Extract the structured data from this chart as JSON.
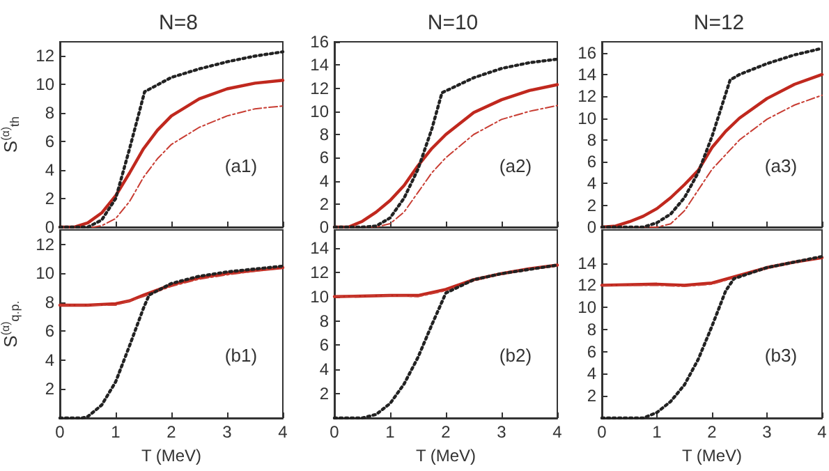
{
  "chart_data": [
    {
      "type": "line",
      "title": "N=8",
      "ylabel": "S$^{(α)}$$_{th}$",
      "annotations": [
        "(a1)"
      ],
      "xlim": [
        0,
        4
      ],
      "xticks": [
        0,
        1,
        2,
        3,
        4
      ],
      "ylim": [
        0,
        13
      ],
      "yticks": [
        0,
        2,
        4,
        6,
        8,
        10,
        12
      ],
      "tick_labels": "y",
      "grid": false,
      "marker": "none",
      "series": [
        {
          "color": "#222222",
          "line_style": "dotted",
          "x": [
            0,
            0.25,
            0.5,
            0.75,
            1,
            1.25,
            1.52,
            2,
            2.5,
            3,
            3.5,
            4
          ],
          "values": [
            0,
            0,
            0,
            0.5,
            2.0,
            5.5,
            9.5,
            10.5,
            11.1,
            11.6,
            12.0,
            12.3
          ]
        },
        {
          "color": "#c0281e",
          "line_style": "solid",
          "x": [
            0,
            0.25,
            0.5,
            0.75,
            1,
            1.25,
            1.5,
            1.75,
            2,
            2.5,
            3,
            3.5,
            4
          ],
          "values": [
            0,
            0,
            0.3,
            1.0,
            2.2,
            3.8,
            5.5,
            6.8,
            7.8,
            9.0,
            9.7,
            10.1,
            10.3
          ]
        },
        {
          "color": "#c83c32",
          "line_style": "dashed",
          "x": [
            0,
            0.6,
            0.75,
            1,
            1.25,
            1.5,
            1.75,
            2,
            2.5,
            3,
            3.5,
            4
          ],
          "values": [
            0,
            0,
            0.1,
            0.6,
            1.8,
            3.5,
            4.8,
            5.8,
            7.0,
            7.8,
            8.3,
            8.5
          ]
        }
      ]
    },
    {
      "type": "line",
      "title": "N=10",
      "annotations": [
        "(a2)"
      ],
      "xlim": [
        0,
        4
      ],
      "xticks": [
        0,
        1,
        2,
        3,
        4
      ],
      "ylim": [
        0,
        16
      ],
      "yticks": [
        0,
        2,
        4,
        6,
        8,
        10,
        12,
        14,
        16
      ],
      "tick_labels": "y",
      "grid": false,
      "marker": "none",
      "series": [
        {
          "color": "#222222",
          "line_style": "dotted",
          "x": [
            0,
            0.5,
            0.75,
            1,
            1.25,
            1.5,
            1.75,
            1.93,
            2.5,
            3,
            3.5,
            4
          ],
          "values": [
            0,
            0,
            0.1,
            0.8,
            2.5,
            5.0,
            8.5,
            11.6,
            12.9,
            13.7,
            14.2,
            14.5
          ]
        },
        {
          "color": "#c0281e",
          "line_style": "solid",
          "x": [
            0,
            0.25,
            0.5,
            0.75,
            1,
            1.25,
            1.5,
            1.75,
            2,
            2.5,
            3,
            3.5,
            4
          ],
          "values": [
            0,
            0,
            0.5,
            1.3,
            2.3,
            3.6,
            5.3,
            6.8,
            8.0,
            9.9,
            11.0,
            11.8,
            12.3
          ]
        },
        {
          "color": "#c83c32",
          "line_style": "dashed",
          "x": [
            0,
            0.75,
            1,
            1.25,
            1.5,
            1.75,
            2,
            2.5,
            3,
            3.5,
            4
          ],
          "values": [
            0,
            0,
            0.3,
            1.3,
            3.0,
            4.7,
            6.0,
            8.0,
            9.3,
            10.0,
            10.5
          ]
        }
      ]
    },
    {
      "type": "line",
      "title": "N=12",
      "annotations": [
        "(a3)"
      ],
      "xlim": [
        0,
        4
      ],
      "xticks": [
        0,
        1,
        2,
        3,
        4
      ],
      "ylim": [
        0,
        17
      ],
      "yticks": [
        0,
        2,
        4,
        6,
        8,
        10,
        12,
        14,
        16
      ],
      "tick_labels": "y",
      "grid": false,
      "marker": "none",
      "series": [
        {
          "color": "#222222",
          "line_style": "dotted",
          "x": [
            0,
            0.75,
            1,
            1.25,
            1.5,
            1.75,
            2,
            2.33,
            2.5,
            3,
            3.5,
            4
          ],
          "values": [
            0,
            0,
            0.4,
            1.2,
            2.7,
            5.0,
            8.3,
            13.5,
            14.0,
            15.0,
            15.8,
            16.4
          ]
        },
        {
          "color": "#c0281e",
          "line_style": "solid",
          "x": [
            0,
            0.25,
            0.5,
            0.75,
            1,
            1.25,
            1.5,
            1.75,
            2,
            2.25,
            2.5,
            3,
            3.5,
            4
          ],
          "values": [
            0,
            0.1,
            0.5,
            1.0,
            1.7,
            2.7,
            3.9,
            5.2,
            7.3,
            8.8,
            10.0,
            11.8,
            13.1,
            14.0
          ]
        },
        {
          "color": "#c83c32",
          "line_style": "dashed",
          "x": [
            0,
            1,
            1.25,
            1.5,
            1.75,
            2,
            2.5,
            3,
            3.5,
            4
          ],
          "values": [
            0,
            0,
            0.3,
            1.5,
            3.4,
            5.3,
            8.0,
            9.9,
            11.2,
            12.1
          ]
        }
      ]
    },
    {
      "type": "line",
      "xlabel": "T (MeV)",
      "ylabel": "S$^{(α)}$$_{q.p.}$",
      "annotations": [
        "(b1)"
      ],
      "xlim": [
        0,
        4
      ],
      "xticks": [
        0,
        1,
        2,
        3,
        4
      ],
      "ylim": [
        0,
        13
      ],
      "yticks": [
        2,
        4,
        6,
        8,
        10,
        12
      ],
      "grid": false,
      "marker": "none",
      "series": [
        {
          "color": "#222222",
          "line_style": "dotted",
          "x": [
            0,
            0.4,
            0.5,
            0.75,
            1,
            1.25,
            1.5,
            1.6,
            2,
            2.5,
            3,
            4
          ],
          "values": [
            0,
            0,
            0.1,
            0.9,
            2.5,
            5.0,
            7.6,
            8.5,
            9.3,
            9.8,
            10.1,
            10.5
          ]
        },
        {
          "color": "#c0281e",
          "line_style": "solid",
          "x": [
            0,
            0.5,
            1,
            1.25,
            1.5,
            2,
            2.5,
            3,
            3.5,
            4
          ],
          "values": [
            7.8,
            7.8,
            7.9,
            8.1,
            8.5,
            9.2,
            9.7,
            10.0,
            10.2,
            10.4
          ]
        },
        {
          "color": "#c83c32",
          "line_style": "dashed",
          "x": [
            0,
            1,
            1.5,
            2,
            2.5,
            3,
            4
          ],
          "values": [
            7.8,
            7.8,
            8.4,
            9.1,
            9.6,
            9.9,
            10.4
          ]
        }
      ]
    },
    {
      "type": "line",
      "xlabel": "T (MeV)",
      "annotations": [
        "(b2)"
      ],
      "xlim": [
        0,
        4
      ],
      "xticks": [
        0,
        1,
        2,
        3,
        4
      ],
      "ylim": [
        0,
        15.5
      ],
      "yticks": [
        2,
        4,
        6,
        8,
        10,
        12,
        14
      ],
      "grid": false,
      "marker": "none",
      "series": [
        {
          "color": "#222222",
          "line_style": "dotted",
          "x": [
            0,
            0.5,
            0.75,
            1,
            1.25,
            1.5,
            1.75,
            2,
            2.5,
            3,
            4
          ],
          "values": [
            0,
            0,
            0.3,
            1.2,
            2.8,
            5.0,
            7.7,
            10.3,
            11.4,
            11.9,
            12.6
          ]
        },
        {
          "color": "#c0281e",
          "line_style": "solid",
          "x": [
            0,
            1,
            1.5,
            2,
            2.5,
            3,
            3.5,
            4
          ],
          "values": [
            10,
            10.1,
            10.1,
            10.6,
            11.4,
            11.9,
            12.3,
            12.6
          ]
        },
        {
          "color": "#c83c32",
          "line_style": "dashed",
          "x": [
            0,
            1,
            1.5,
            2,
            2.5,
            3,
            3.5,
            4
          ],
          "values": [
            10,
            10.1,
            10.0,
            10.5,
            11.3,
            11.9,
            12.3,
            12.6
          ]
        }
      ]
    },
    {
      "type": "line",
      "xlabel": "T (MeV)",
      "annotations": [
        "(b3)"
      ],
      "xlim": [
        0,
        4
      ],
      "xticks": [
        0,
        1,
        2,
        3,
        4
      ],
      "ylim": [
        0,
        17
      ],
      "yticks": [
        2,
        4,
        6,
        8,
        10,
        12,
        14
      ],
      "grid": false,
      "marker": "none",
      "series": [
        {
          "color": "#222222",
          "line_style": "dotted",
          "x": [
            0,
            0.75,
            1,
            1.25,
            1.5,
            1.75,
            2,
            2.25,
            2.4,
            3,
            4
          ],
          "values": [
            0,
            0,
            0.5,
            1.5,
            3.0,
            5.3,
            8.3,
            11.5,
            12.6,
            13.6,
            14.6
          ]
        },
        {
          "color": "#c0281e",
          "line_style": "solid",
          "x": [
            0,
            1,
            1.5,
            2,
            2.5,
            3,
            3.5,
            4
          ],
          "values": [
            12.0,
            12.1,
            12.0,
            12.2,
            12.9,
            13.6,
            14.1,
            14.5
          ]
        },
        {
          "color": "#c83c32",
          "line_style": "dashed",
          "x": [
            0,
            1,
            1.5,
            2,
            2.5,
            3,
            3.5,
            4
          ],
          "values": [
            12.0,
            12.0,
            11.9,
            12.1,
            12.8,
            13.5,
            14.1,
            14.5
          ]
        }
      ]
    }
  ]
}
